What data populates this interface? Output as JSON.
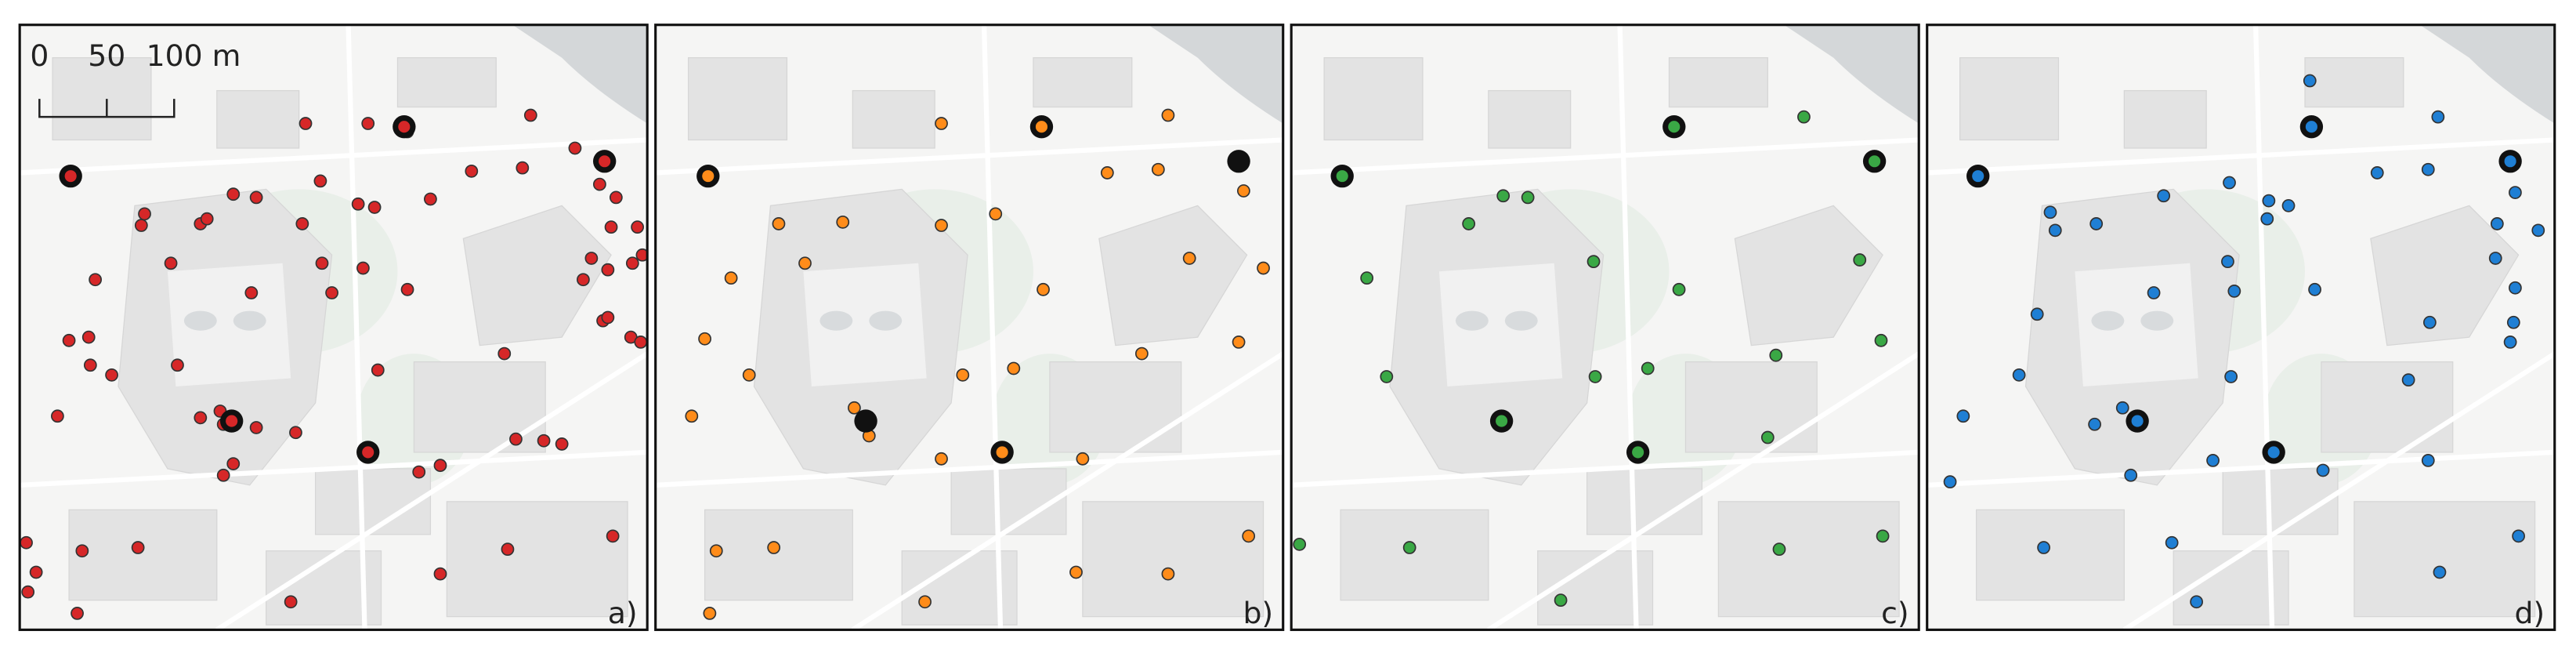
{
  "scale_bar": {
    "labels": [
      "0",
      "50",
      "100 m"
    ]
  },
  "panels": [
    {
      "label": "a)"
    },
    {
      "label": "b)"
    },
    {
      "label": "c)"
    },
    {
      "label": "d)"
    }
  ]
}
